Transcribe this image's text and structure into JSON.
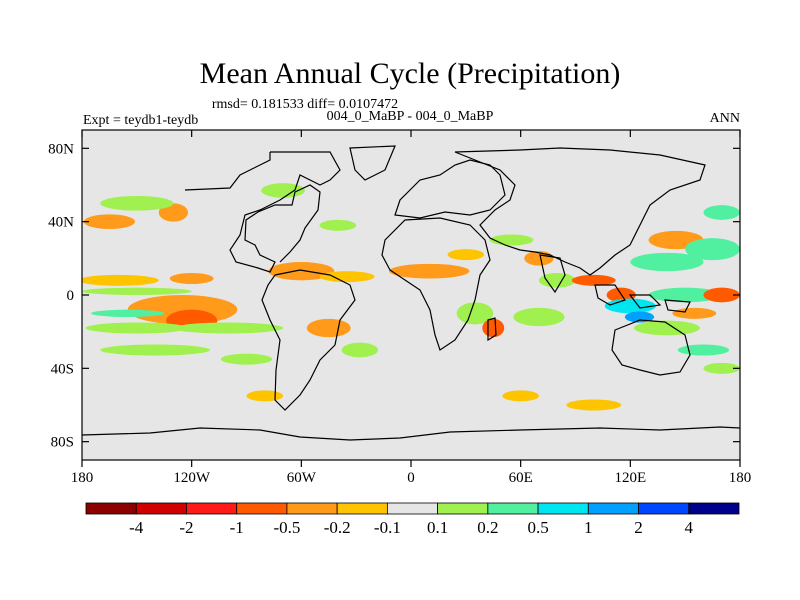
{
  "chart_data": {
    "type": "heatmap",
    "title": "Mean Annual Cycle (Precipitation)",
    "stats": "rmsd= 0.181533 diff= 0.0107472",
    "left_label": "Expt = teydb1-teydb",
    "center_label": "004_0_MaBP - 004_0_MaBP",
    "right_label": "ANN",
    "x_ticks": [
      {
        "value": -180,
        "label": "180"
      },
      {
        "value": -120,
        "label": "120W"
      },
      {
        "value": -60,
        "label": "60W"
      },
      {
        "value": 0,
        "label": "0"
      },
      {
        "value": 60,
        "label": "60E"
      },
      {
        "value": 120,
        "label": "120E"
      },
      {
        "value": 180,
        "label": "180"
      }
    ],
    "y_ticks": [
      {
        "value": 80,
        "label": "80N"
      },
      {
        "value": 40,
        "label": "40N"
      },
      {
        "value": 0,
        "label": "0"
      },
      {
        "value": -40,
        "label": "40S"
      },
      {
        "value": -80,
        "label": "80S"
      }
    ],
    "xlim": [
      -180,
      180
    ],
    "ylim": [
      -90,
      90
    ],
    "colorbar": {
      "labels": [
        "-4",
        "-2",
        "-1",
        "-0.5",
        "-0.2",
        "-0.1",
        "0.1",
        "0.2",
        "0.5",
        "1",
        "2",
        "4"
      ],
      "colors": [
        "#8c0000",
        "#d10000",
        "#ff1a1a",
        "#ff5a00",
        "#ff9a1a",
        "#ffc400",
        "#e6e6e6",
        "#a0f050",
        "#50f0a0",
        "#00e6f0",
        "#00a0ff",
        "#0046ff",
        "#00008c"
      ]
    },
    "land_color": "#e6e6e6",
    "anomalies": [
      {
        "lon": -160,
        "lat": 8,
        "rx": 22,
        "ry": 3,
        "level": 5
      },
      {
        "lon": -150,
        "lat": 2,
        "rx": 30,
        "ry": 2,
        "level": 7
      },
      {
        "lon": -120,
        "lat": 9,
        "rx": 12,
        "ry": 3,
        "level": 4
      },
      {
        "lon": -125,
        "lat": -8,
        "rx": 30,
        "ry": 8,
        "level": 4
      },
      {
        "lon": -120,
        "lat": -14,
        "rx": 14,
        "ry": 6,
        "level": 3
      },
      {
        "lon": -150,
        "lat": -18,
        "rx": 28,
        "ry": 3,
        "level": 7
      },
      {
        "lon": -155,
        "lat": -10,
        "rx": 20,
        "ry": 2,
        "level": 8
      },
      {
        "lon": -100,
        "lat": -18,
        "rx": 30,
        "ry": 3,
        "level": 7
      },
      {
        "lon": -140,
        "lat": -30,
        "rx": 30,
        "ry": 3,
        "level": 7
      },
      {
        "lon": -165,
        "lat": 40,
        "rx": 14,
        "ry": 4,
        "level": 4
      },
      {
        "lon": -130,
        "lat": 45,
        "rx": 8,
        "ry": 5,
        "level": 4
      },
      {
        "lon": -150,
        "lat": 50,
        "rx": 20,
        "ry": 4,
        "level": 7
      },
      {
        "lon": -60,
        "lat": 13,
        "rx": 18,
        "ry": 5,
        "level": 4
      },
      {
        "lon": -35,
        "lat": 10,
        "rx": 15,
        "ry": 3,
        "level": 5
      },
      {
        "lon": -45,
        "lat": -18,
        "rx": 12,
        "ry": 5,
        "level": 4
      },
      {
        "lon": -28,
        "lat": -30,
        "rx": 10,
        "ry": 4,
        "level": 7
      },
      {
        "lon": -90,
        "lat": -35,
        "rx": 14,
        "ry": 3,
        "level": 7
      },
      {
        "lon": -80,
        "lat": -55,
        "rx": 10,
        "ry": 3,
        "level": 5
      },
      {
        "lon": -70,
        "lat": 57,
        "rx": 12,
        "ry": 4,
        "level": 7
      },
      {
        "lon": -40,
        "lat": 38,
        "rx": 10,
        "ry": 3,
        "level": 7
      },
      {
        "lon": 10,
        "lat": 13,
        "rx": 22,
        "ry": 4,
        "level": 4
      },
      {
        "lon": 35,
        "lat": -10,
        "rx": 10,
        "ry": 6,
        "level": 7
      },
      {
        "lon": 45,
        "lat": -18,
        "rx": 6,
        "ry": 5,
        "level": 3
      },
      {
        "lon": 30,
        "lat": 22,
        "rx": 10,
        "ry": 3,
        "level": 5
      },
      {
        "lon": 55,
        "lat": 30,
        "rx": 12,
        "ry": 3,
        "level": 7
      },
      {
        "lon": 70,
        "lat": 20,
        "rx": 8,
        "ry": 4,
        "level": 4
      },
      {
        "lon": 80,
        "lat": 8,
        "rx": 10,
        "ry": 4,
        "level": 7
      },
      {
        "lon": 70,
        "lat": -12,
        "rx": 14,
        "ry": 5,
        "level": 7
      },
      {
        "lon": 100,
        "lat": 8,
        "rx": 12,
        "ry": 3,
        "level": 3
      },
      {
        "lon": 115,
        "lat": 0,
        "rx": 8,
        "ry": 4,
        "level": 3
      },
      {
        "lon": 120,
        "lat": -6,
        "rx": 14,
        "ry": 4,
        "level": 9
      },
      {
        "lon": 125,
        "lat": -12,
        "rx": 8,
        "ry": 3,
        "level": 10
      },
      {
        "lon": 140,
        "lat": 18,
        "rx": 20,
        "ry": 5,
        "level": 8
      },
      {
        "lon": 145,
        "lat": 30,
        "rx": 15,
        "ry": 5,
        "level": 4
      },
      {
        "lon": 165,
        "lat": 25,
        "rx": 15,
        "ry": 6,
        "level": 8
      },
      {
        "lon": 150,
        "lat": 0,
        "rx": 20,
        "ry": 4,
        "level": 8
      },
      {
        "lon": 155,
        "lat": -10,
        "rx": 12,
        "ry": 3,
        "level": 4
      },
      {
        "lon": 140,
        "lat": -18,
        "rx": 18,
        "ry": 4,
        "level": 7
      },
      {
        "lon": 160,
        "lat": -30,
        "rx": 14,
        "ry": 3,
        "level": 8
      },
      {
        "lon": 170,
        "lat": -40,
        "rx": 10,
        "ry": 3,
        "level": 7
      },
      {
        "lon": 170,
        "lat": 45,
        "rx": 10,
        "ry": 4,
        "level": 8
      },
      {
        "lon": 100,
        "lat": -60,
        "rx": 15,
        "ry": 3,
        "level": 5
      },
      {
        "lon": 60,
        "lat": -55,
        "rx": 10,
        "ry": 3,
        "level": 5
      },
      {
        "lon": 170,
        "lat": 0,
        "rx": 10,
        "ry": 4,
        "level": 3
      }
    ]
  }
}
